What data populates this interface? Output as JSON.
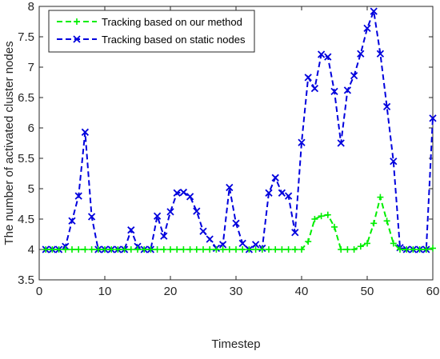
{
  "chart_data": {
    "type": "line",
    "title": "",
    "xlabel": "Timestep",
    "ylabel": "The number of activated cluster nodes",
    "xlim": [
      0,
      60
    ],
    "ylim": [
      3.5,
      8
    ],
    "xticks": [
      0,
      10,
      20,
      30,
      40,
      50,
      60
    ],
    "yticks": [
      3.5,
      4,
      4.5,
      5,
      5.5,
      6,
      6.5,
      7,
      7.5,
      8
    ],
    "grid": false,
    "legend": "top-left",
    "x": [
      1,
      2,
      3,
      4,
      5,
      6,
      7,
      8,
      9,
      10,
      11,
      12,
      13,
      14,
      15,
      16,
      17,
      18,
      19,
      20,
      21,
      22,
      23,
      24,
      25,
      26,
      27,
      28,
      29,
      30,
      31,
      32,
      33,
      34,
      35,
      36,
      37,
      38,
      39,
      40,
      41,
      42,
      43,
      44,
      45,
      46,
      47,
      48,
      49,
      50,
      51,
      52,
      53,
      54,
      55,
      56,
      57,
      58,
      59,
      60
    ],
    "series": [
      {
        "name": "Tracking based on our method",
        "color": "#00ee00",
        "marker": "plus",
        "values": [
          4,
          4,
          4,
          4,
          4,
          4,
          4,
          4,
          4,
          4,
          4,
          4,
          4,
          4,
          4,
          4,
          4,
          4,
          4,
          4,
          4,
          4,
          4,
          4,
          4,
          4,
          4,
          4,
          4,
          4,
          4,
          4,
          4,
          4,
          4,
          4,
          4,
          4,
          4,
          4,
          4.13,
          4.5,
          4.55,
          4.57,
          4.37,
          4,
          4,
          4,
          4.05,
          4.1,
          4.43,
          4.86,
          4.47,
          4.1,
          4,
          4,
          4,
          4,
          4,
          4.02
        ]
      },
      {
        "name": "Tracking based on static nodes",
        "color": "#0000dd",
        "marker": "x",
        "values": [
          4,
          4,
          4,
          4.05,
          4.47,
          4.88,
          5.93,
          4.54,
          4,
          4,
          4,
          4,
          4,
          4.32,
          4.05,
          4,
          4,
          4.55,
          4.22,
          4.62,
          4.93,
          4.94,
          4.87,
          4.63,
          4.3,
          4.17,
          4.02,
          4.08,
          5.02,
          4.43,
          4.1,
          4,
          4.08,
          4.02,
          4.93,
          5.18,
          4.93,
          4.88,
          4.28,
          5.76,
          6.83,
          6.65,
          7.21,
          7.17,
          6.6,
          5.75,
          6.62,
          6.86,
          7.22,
          7.64,
          7.92,
          7.22,
          6.35,
          5.45,
          4.03,
          4,
          4,
          4,
          4,
          6.16
        ]
      }
    ]
  }
}
